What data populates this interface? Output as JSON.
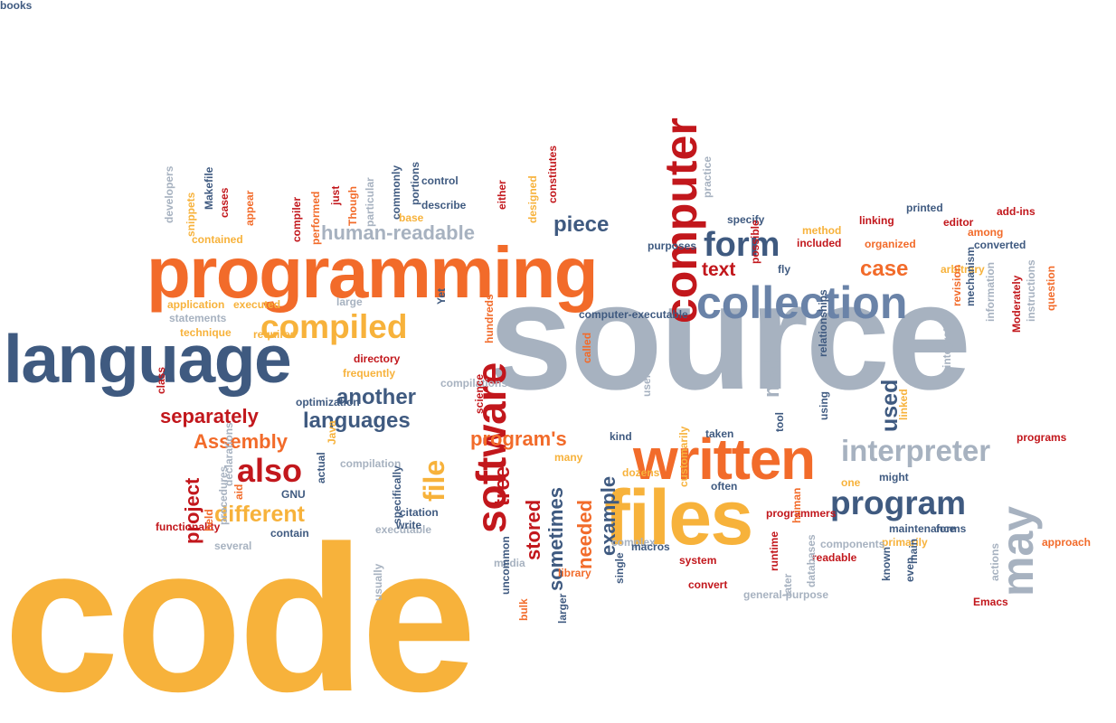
{
  "colors": {
    "orange": "#f26b2a",
    "red": "#c2171c",
    "yellow": "#f7b23b",
    "navy": "#3f5a80",
    "blue": "#6a83a8",
    "gray": "#a7b2c0",
    "paleblue": "#b6c3d6"
  },
  "words": [
    {
      "t": "code",
      "c": "yellow",
      "v": false
    },
    {
      "t": "source",
      "c": "gray",
      "v": false
    },
    {
      "t": "programming",
      "c": "orange",
      "v": false
    },
    {
      "t": "language",
      "c": "navy",
      "v": false
    },
    {
      "t": "computer",
      "c": "red",
      "v": true
    },
    {
      "t": "files",
      "c": "yellow",
      "v": false
    },
    {
      "t": "written",
      "c": "orange",
      "v": false
    },
    {
      "t": "collection",
      "c": "blue",
      "v": false
    },
    {
      "t": "may",
      "c": "gray",
      "v": true
    },
    {
      "t": "program",
      "c": "navy",
      "v": false
    },
    {
      "t": "interpreter",
      "c": "gray",
      "v": false
    },
    {
      "t": "software",
      "c": "red",
      "v": true
    },
    {
      "t": "compiled",
      "c": "yellow",
      "v": false
    },
    {
      "t": "form",
      "c": "navy",
      "v": false
    },
    {
      "t": "human-readable",
      "c": "gray",
      "v": false
    },
    {
      "t": "piece",
      "c": "navy",
      "v": false
    },
    {
      "t": "another",
      "c": "navy",
      "v": false
    },
    {
      "t": "languages",
      "c": "navy",
      "v": false
    },
    {
      "t": "separately",
      "c": "red",
      "v": false
    },
    {
      "t": "Assembly",
      "c": "orange",
      "v": false
    },
    {
      "t": "also",
      "c": "red",
      "v": false
    },
    {
      "t": "different",
      "c": "yellow",
      "v": false
    },
    {
      "t": "program's",
      "c": "orange",
      "v": false
    },
    {
      "t": "file",
      "c": "yellow",
      "v": true
    },
    {
      "t": "used",
      "c": "navy",
      "v": true
    },
    {
      "t": "make",
      "c": "gray",
      "v": true
    },
    {
      "t": "case",
      "c": "orange",
      "v": false
    },
    {
      "t": "text",
      "c": "red",
      "v": false
    },
    {
      "t": "tree",
      "c": "red",
      "v": true
    },
    {
      "t": "stored",
      "c": "red",
      "v": true
    },
    {
      "t": "sometimes",
      "c": "navy",
      "v": true
    },
    {
      "t": "needed",
      "c": "orange",
      "v": true
    },
    {
      "t": "example",
      "c": "navy",
      "v": true
    },
    {
      "t": "project",
      "c": "red",
      "v": true
    },
    {
      "t": "developers",
      "c": "gray",
      "v": true
    },
    {
      "t": "snippets",
      "c": "yellow",
      "v": true
    },
    {
      "t": "Makefile",
      "c": "navy",
      "v": true
    },
    {
      "t": "cases",
      "c": "red",
      "v": true
    },
    {
      "t": "appear",
      "c": "orange",
      "v": true
    },
    {
      "t": "contained",
      "c": "yellow",
      "v": false
    },
    {
      "t": "compiler",
      "c": "red",
      "v": true
    },
    {
      "t": "performed",
      "c": "orange",
      "v": true
    },
    {
      "t": "just",
      "c": "red",
      "v": true
    },
    {
      "t": "Though",
      "c": "orange",
      "v": true
    },
    {
      "t": "particular",
      "c": "gray",
      "v": true
    },
    {
      "t": "commonly",
      "c": "navy",
      "v": true
    },
    {
      "t": "base",
      "c": "yellow",
      "v": false
    },
    {
      "t": "portions",
      "c": "navy",
      "v": true
    },
    {
      "t": "control",
      "c": "navy",
      "v": false
    },
    {
      "t": "describe",
      "c": "navy",
      "v": false
    },
    {
      "t": "either",
      "c": "red",
      "v": true
    },
    {
      "t": "designed",
      "c": "yellow",
      "v": true
    },
    {
      "t": "constitutes",
      "c": "red",
      "v": true
    },
    {
      "t": "purposes",
      "c": "navy",
      "v": false
    },
    {
      "t": "practice",
      "c": "gray",
      "v": true
    },
    {
      "t": "specify",
      "c": "navy",
      "v": false
    },
    {
      "t": "printed",
      "c": "navy",
      "v": false
    },
    {
      "t": "editor",
      "c": "red",
      "v": false
    },
    {
      "t": "add-ins",
      "c": "red",
      "v": false
    },
    {
      "t": "among",
      "c": "orange",
      "v": false
    },
    {
      "t": "converted",
      "c": "navy",
      "v": false
    },
    {
      "t": "linking",
      "c": "red",
      "v": false
    },
    {
      "t": "method",
      "c": "yellow",
      "v": false
    },
    {
      "t": "included",
      "c": "red",
      "v": false
    },
    {
      "t": "organized",
      "c": "orange",
      "v": false
    },
    {
      "t": "arbitrary",
      "c": "yellow",
      "v": false
    },
    {
      "t": "revision",
      "c": "orange",
      "v": true
    },
    {
      "t": "mechanism",
      "c": "navy",
      "v": true
    },
    {
      "t": "information",
      "c": "gray",
      "v": true
    },
    {
      "t": "Moderately",
      "c": "red",
      "v": true
    },
    {
      "t": "instructions",
      "c": "gray",
      "v": true
    },
    {
      "t": "question",
      "c": "orange",
      "v": true
    },
    {
      "t": "possible",
      "c": "red",
      "v": true
    },
    {
      "t": "fly",
      "c": "navy",
      "v": false
    },
    {
      "t": "application",
      "c": "yellow",
      "v": false
    },
    {
      "t": "executed",
      "c": "yellow",
      "v": false
    },
    {
      "t": "large",
      "c": "gray",
      "v": false
    },
    {
      "t": "statements",
      "c": "gray",
      "v": false
    },
    {
      "t": "requires",
      "c": "yellow",
      "v": false
    },
    {
      "t": "Yet",
      "c": "navy",
      "v": true
    },
    {
      "t": "computer-executable",
      "c": "navy",
      "v": false
    },
    {
      "t": "technique",
      "c": "yellow",
      "v": false
    },
    {
      "t": "directory",
      "c": "red",
      "v": false
    },
    {
      "t": "frequently",
      "c": "yellow",
      "v": false
    },
    {
      "t": "compilations",
      "c": "gray",
      "v": false
    },
    {
      "t": "science",
      "c": "red",
      "v": true
    },
    {
      "t": "hundreds",
      "c": "orange",
      "v": true
    },
    {
      "t": "called",
      "c": "orange",
      "v": true
    },
    {
      "t": "user",
      "c": "gray",
      "v": true
    },
    {
      "t": "using",
      "c": "navy",
      "v": true
    },
    {
      "t": "relationships",
      "c": "navy",
      "v": true
    },
    {
      "t": "linked",
      "c": "yellow",
      "v": true
    },
    {
      "t": "integrated",
      "c": "gray",
      "v": true
    },
    {
      "t": "programs",
      "c": "red",
      "v": false
    },
    {
      "t": "class",
      "c": "red",
      "v": true
    },
    {
      "t": "optimization",
      "c": "navy",
      "v": false
    },
    {
      "t": "taken",
      "c": "navy",
      "v": false
    },
    {
      "t": "tool",
      "c": "navy",
      "v": true
    },
    {
      "t": "kind",
      "c": "navy",
      "v": false
    },
    {
      "t": "dozens",
      "c": "yellow",
      "v": false
    },
    {
      "t": "Java",
      "c": "yellow",
      "v": true
    },
    {
      "t": "compilation",
      "c": "gray",
      "v": false
    },
    {
      "t": "many",
      "c": "yellow",
      "v": false
    },
    {
      "t": "one",
      "c": "yellow",
      "v": false
    },
    {
      "t": "might",
      "c": "navy",
      "v": false
    },
    {
      "t": "functionality",
      "c": "red",
      "v": false
    },
    {
      "t": "declarations",
      "c": "gray",
      "v": true
    },
    {
      "t": "aid",
      "c": "orange",
      "v": true
    },
    {
      "t": "actual",
      "c": "navy",
      "v": true
    },
    {
      "t": "GNU",
      "c": "navy",
      "v": false
    },
    {
      "t": "executable",
      "c": "gray",
      "v": false
    },
    {
      "t": "specifically",
      "c": "navy",
      "v": true
    },
    {
      "t": "customarily",
      "c": "yellow",
      "v": true
    },
    {
      "t": "often",
      "c": "navy",
      "v": false
    },
    {
      "t": "programmers",
      "c": "red",
      "v": false
    },
    {
      "t": "approach",
      "c": "orange",
      "v": false
    },
    {
      "t": "held",
      "c": "orange",
      "v": true
    },
    {
      "t": "procedures",
      "c": "gray",
      "v": true
    },
    {
      "t": "contain",
      "c": "navy",
      "v": false
    },
    {
      "t": "several",
      "c": "gray",
      "v": false
    },
    {
      "t": "citation",
      "c": "navy",
      "v": false
    },
    {
      "t": "write",
      "c": "navy",
      "v": false
    },
    {
      "t": "media",
      "c": "gray",
      "v": false
    },
    {
      "t": "usually",
      "c": "gray",
      "v": true
    },
    {
      "t": "uncommon",
      "c": "navy",
      "v": true
    },
    {
      "t": "bulk",
      "c": "orange",
      "v": true
    },
    {
      "t": "larger",
      "c": "navy",
      "v": true
    },
    {
      "t": "human",
      "c": "orange",
      "v": true
    },
    {
      "t": "maintenance",
      "c": "navy",
      "v": false
    },
    {
      "t": "forms",
      "c": "navy",
      "v": false
    },
    {
      "t": "primarily",
      "c": "yellow",
      "v": false
    },
    {
      "t": "complex",
      "c": "gray",
      "v": false
    },
    {
      "t": "macros",
      "c": "navy",
      "v": false
    },
    {
      "t": "components",
      "c": "gray",
      "v": false
    },
    {
      "t": "readable",
      "c": "red",
      "v": false
    },
    {
      "t": "system",
      "c": "red",
      "v": false
    },
    {
      "t": "library",
      "c": "orange",
      "v": false
    },
    {
      "t": "general-purpose",
      "c": "gray",
      "v": false
    },
    {
      "t": "runtime",
      "c": "red",
      "v": true
    },
    {
      "t": "later",
      "c": "gray",
      "v": true
    },
    {
      "t": "databases",
      "c": "gray",
      "v": true
    },
    {
      "t": "known",
      "c": "navy",
      "v": true
    },
    {
      "t": "even",
      "c": "navy",
      "v": true
    },
    {
      "t": "main",
      "c": "navy",
      "v": true
    },
    {
      "t": "Emacs",
      "c": "red",
      "v": false
    },
    {
      "t": "actions",
      "c": "gray",
      "v": true
    },
    {
      "t": "single",
      "c": "navy",
      "v": true
    },
    {
      "t": "convert",
      "c": "red",
      "v": false
    },
    {
      "t": "books",
      "c": "navy",
      "v": false
    }
  ]
}
